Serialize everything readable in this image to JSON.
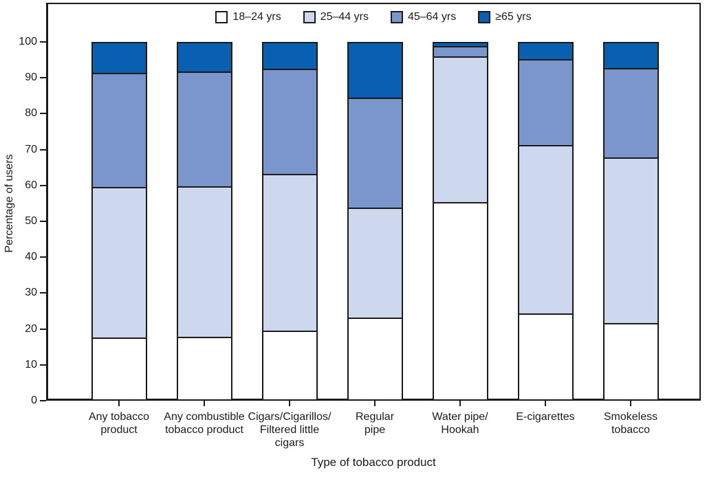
{
  "chart_data": {
    "type": "stacked_bar",
    "title": "",
    "xlabel": "Type of tobacco product",
    "ylabel": "Percentage of users",
    "ylim": [
      0,
      100
    ],
    "yticks": [
      0,
      10,
      20,
      30,
      40,
      50,
      60,
      70,
      80,
      90,
      100
    ],
    "grid": "off",
    "legend_position": "top-center",
    "categories": [
      "Any tobacco\nproduct",
      "Any combustible\ntobacco product",
      "Cigars/Cigarillos/\nFiltered little\ncigars",
      "Regular\npipe",
      "Water pipe/\nHookah",
      "E-cigarettes",
      "Smokeless\ntobacco"
    ],
    "series": [
      {
        "name": "18–24 yrs",
        "color": "#ffffff",
        "values": [
          17.4,
          17.6,
          19.3,
          22.9,
          55.4,
          24.2,
          21.5
        ]
      },
      {
        "name": "25–44 yrs",
        "color": "#cdd8ee",
        "values": [
          42.3,
          42.2,
          44.1,
          30.9,
          40.9,
          47.2,
          46.4
        ]
      },
      {
        "name": "45–64 yrs",
        "color": "#7b96cd",
        "values": [
          32.0,
          32.2,
          29.4,
          31.0,
          3.0,
          24.2,
          25.2
        ]
      },
      {
        "name": "≥65 yrs",
        "color": "#0a60b0",
        "values": [
          8.3,
          8.0,
          7.2,
          15.2,
          0.7,
          4.4,
          6.9
        ]
      }
    ],
    "colors": {
      "axis": "#1a1a1a",
      "segment_border": "#1a1a1a",
      "background": "#ffffff"
    }
  }
}
